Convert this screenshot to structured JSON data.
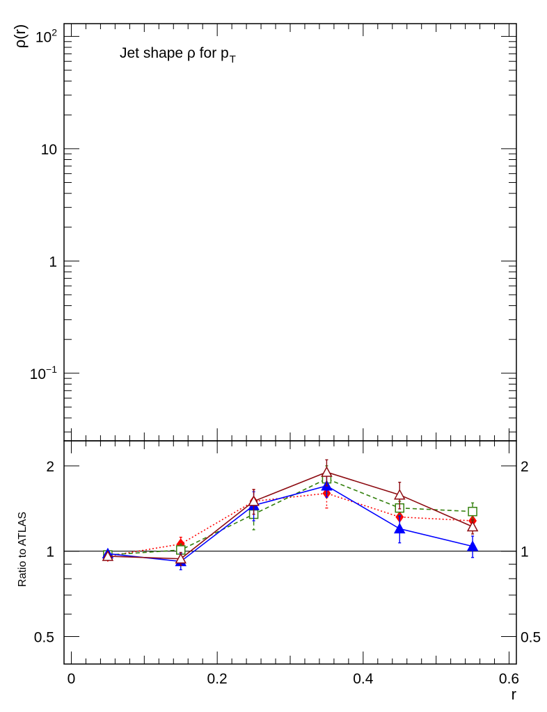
{
  "chart_data": [
    {
      "panel": "top",
      "type": "line",
      "yscale": "log",
      "ylabel": "ρ(r)",
      "annotation_main": "Jet shape ρ for p",
      "annotation_sub": "T",
      "ylim": [
        0.025,
        130
      ],
      "xlim": [
        -0.01,
        0.61
      ],
      "yticks": [
        {
          "value": 100,
          "base": "10",
          "exp": "2"
        },
        {
          "value": 10,
          "base": "10",
          "exp": ""
        },
        {
          "value": 1,
          "base": "1",
          "exp": ""
        },
        {
          "value": 0.1,
          "base": "10",
          "exp": "−1"
        }
      ],
      "series": []
    },
    {
      "panel": "bottom",
      "type": "line",
      "yscale": "log",
      "ylabel": "Ratio to ATLAS",
      "xlabel": "r",
      "xlim": [
        -0.01,
        0.61
      ],
      "ylim": [
        0.4,
        2.45
      ],
      "reference_line": 1,
      "xticks": [
        {
          "value": 0,
          "label": "0"
        },
        {
          "value": 0.2,
          "label": "0.2"
        },
        {
          "value": 0.4,
          "label": "0.4"
        },
        {
          "value": 0.6,
          "label": "0.6"
        }
      ],
      "yticks": [
        {
          "value": 2,
          "label": "2"
        },
        {
          "value": 1,
          "label": "1"
        },
        {
          "value": 0.5,
          "label": "0.5"
        }
      ],
      "x": [
        0.05,
        0.15,
        0.25,
        0.35,
        0.45,
        0.55
      ],
      "series": [
        {
          "color": "#ff0000",
          "dash": "2,3",
          "marker": "diamond",
          "filled": true,
          "values": [
            0.96,
            1.06,
            1.5,
            1.6,
            1.32,
            1.28
          ],
          "errors": [
            0.02,
            0.06,
            0.15,
            0.18,
            0.1,
            0.08
          ]
        },
        {
          "color": "#33800d",
          "dash": "6,4",
          "marker": "square",
          "filled": false,
          "values": [
            0.97,
            1.01,
            1.35,
            1.8,
            1.42,
            1.38
          ],
          "errors": [
            0.02,
            0.05,
            0.16,
            0.2,
            0.08,
            0.1
          ]
        },
        {
          "color": "#0000ff",
          "dash": "",
          "marker": "triangle",
          "filled": true,
          "values": [
            0.98,
            0.92,
            1.45,
            1.7,
            1.2,
            1.04
          ],
          "errors": [
            0.02,
            0.06,
            0.17,
            0.15,
            0.13,
            0.09
          ]
        },
        {
          "color": "#8c0a10",
          "dash": "",
          "marker": "triangle",
          "filled": false,
          "values": [
            0.96,
            0.94,
            1.5,
            1.9,
            1.58,
            1.22
          ],
          "errors": [
            0.02,
            0.05,
            0.15,
            0.2,
            0.17,
            0.07
          ]
        }
      ]
    }
  ]
}
